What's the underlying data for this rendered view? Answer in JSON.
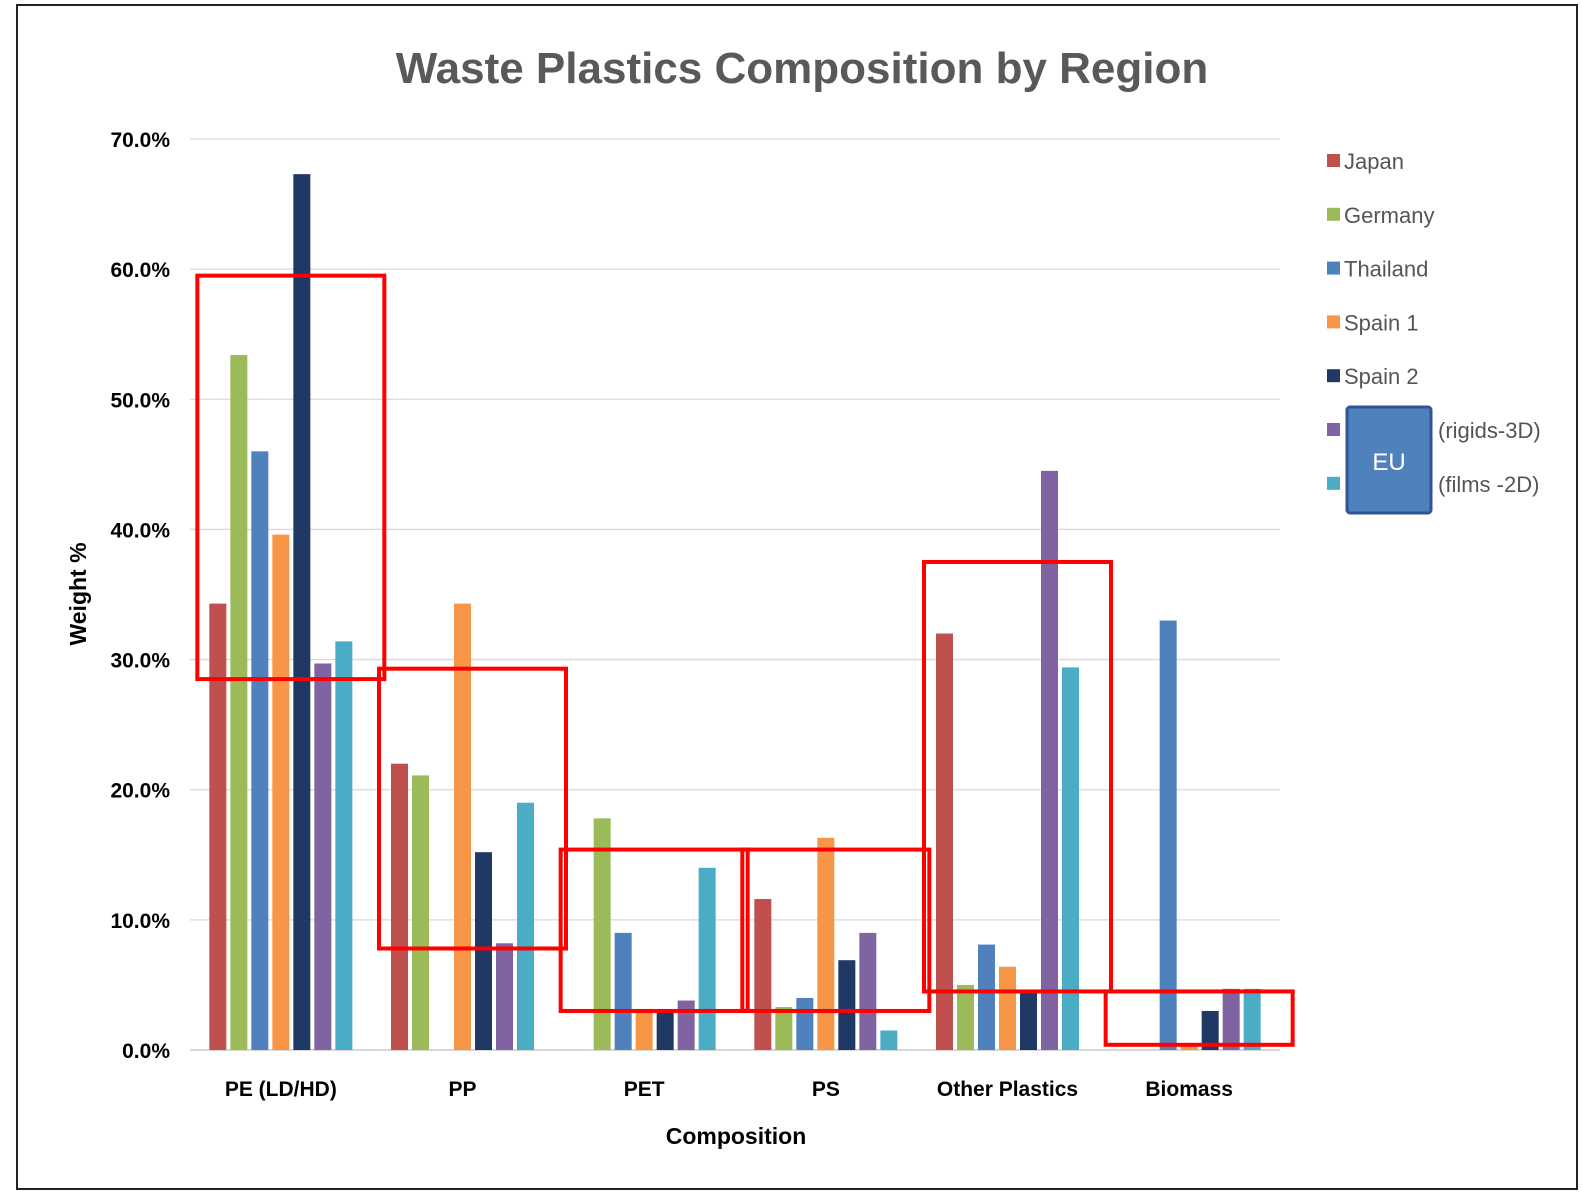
{
  "chart_data": {
    "type": "bar",
    "title": "Waste Plastics Composition by Region",
    "xlabel": "Composition",
    "ylabel": "Weight %",
    "ylim": [
      0,
      70
    ],
    "y_ticks": [
      "0.0%",
      "10.0%",
      "20.0%",
      "30.0%",
      "40.0%",
      "50.0%",
      "60.0%",
      "70.0%"
    ],
    "grid": true,
    "legend_position": "right",
    "categories": [
      "PE (LD/HD)",
      "PP",
      "PET",
      "PS",
      "Other Plastics",
      "Biomass"
    ],
    "series": [
      {
        "name": "Japan",
        "color": "#C0504D",
        "values": [
          34.3,
          22.0,
          0,
          11.6,
          32.0,
          0
        ]
      },
      {
        "name": "Germany",
        "color": "#9BBB59",
        "values": [
          53.4,
          21.1,
          17.8,
          3.3,
          5.0,
          0
        ]
      },
      {
        "name": "Thailand",
        "color": "#4F81BD",
        "values": [
          46.0,
          0,
          9.0,
          4.0,
          8.1,
          33.0
        ]
      },
      {
        "name": "Spain 1",
        "color": "#F79646",
        "values": [
          39.6,
          34.3,
          3.0,
          16.3,
          6.4,
          0.4
        ]
      },
      {
        "name": "Spain 2",
        "color": "#1F3864",
        "values": [
          67.3,
          15.2,
          3.0,
          6.9,
          4.5,
          3.0
        ]
      },
      {
        "name": "(rigids-3D)",
        "color": "#8064A2",
        "values": [
          29.7,
          8.2,
          3.8,
          9.0,
          44.5,
          4.7
        ]
      },
      {
        "name": "(films -2D)",
        "color": "#4BACC6",
        "values": [
          31.4,
          19.0,
          14.0,
          1.5,
          29.4,
          4.7
        ]
      }
    ],
    "legend_labels": [
      "Japan",
      "Germany",
      "Thailand",
      "Spain 1",
      "Spain 2",
      "(rigids-3D)",
      "(films -2D)"
    ],
    "legend_group_label": "EU",
    "highlight_boxes": [
      {
        "category": "PE (LD/HD)",
        "y_range": [
          28.5,
          59.5
        ]
      },
      {
        "category": "PP",
        "y_range": [
          7.8,
          29.3
        ]
      },
      {
        "category": "PET",
        "y_range": [
          3.0,
          15.4
        ]
      },
      {
        "category": "PS",
        "y_range": [
          3.0,
          15.4
        ]
      },
      {
        "category": "Other Plastics",
        "y_range": [
          4.5,
          37.5
        ]
      },
      {
        "category": "Biomass",
        "y_range": [
          0.4,
          4.5
        ]
      }
    ],
    "highlight_color": "#FF0000"
  }
}
